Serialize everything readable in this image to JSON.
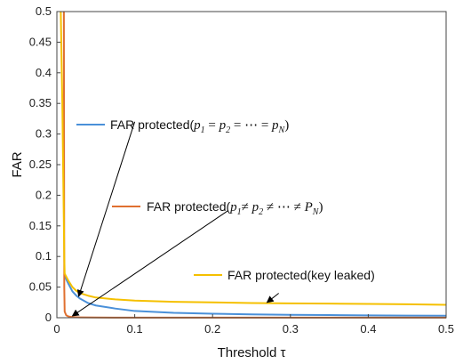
{
  "chart_data": {
    "type": "line",
    "xlabel": "Threshold τ",
    "ylabel": "FAR",
    "xlim": [
      0,
      0.5
    ],
    "ylim": [
      0,
      0.5
    ],
    "xticks": [
      "0",
      "0.1",
      "0.2",
      "0.3",
      "0.4",
      "0.5"
    ],
    "yticks": [
      "0",
      "0.05",
      "0.1",
      "0.15",
      "0.2",
      "0.25",
      "0.3",
      "0.35",
      "0.4",
      "0.45",
      "0.5"
    ],
    "grid": false,
    "series": [
      {
        "name": "FAR protected(p1 = p2 = ⋯ = pN)",
        "color": "#4a90d9",
        "points": [
          [
            0.01,
            0.068
          ],
          [
            0.015,
            0.055
          ],
          [
            0.02,
            0.043
          ],
          [
            0.025,
            0.036
          ],
          [
            0.03,
            0.031
          ],
          [
            0.04,
            0.024
          ],
          [
            0.05,
            0.02
          ],
          [
            0.075,
            0.015
          ],
          [
            0.1,
            0.011
          ],
          [
            0.15,
            0.008
          ],
          [
            0.2,
            0.0065
          ],
          [
            0.25,
            0.0055
          ],
          [
            0.3,
            0.0048
          ],
          [
            0.35,
            0.0043
          ],
          [
            0.4,
            0.0039
          ],
          [
            0.45,
            0.0035
          ],
          [
            0.5,
            0.0032
          ]
        ]
      },
      {
        "name": "FAR protected(p1≠ p2 ≠ ⋯ ≠ PN)",
        "color": "#e07030",
        "points": [
          [
            0.009,
            0.5
          ],
          [
            0.0095,
            0.05
          ],
          [
            0.01,
            0.01
          ],
          [
            0.012,
            0.004
          ],
          [
            0.015,
            0.002
          ],
          [
            0.02,
            0.001
          ],
          [
            0.03,
            0.0006
          ],
          [
            0.05,
            0.0003
          ],
          [
            0.1,
            0.0002
          ],
          [
            0.2,
            0.0001
          ],
          [
            0.3,
            0.0001
          ],
          [
            0.4,
            0.0001
          ],
          [
            0.5,
            0.0001
          ]
        ]
      },
      {
        "name": "FAR protected(key leaked)",
        "color": "#f5c000",
        "points": [
          [
            0.005,
            0.5
          ],
          [
            0.007,
            0.35
          ],
          [
            0.0085,
            0.2
          ],
          [
            0.0095,
            0.1
          ],
          [
            0.01,
            0.072
          ],
          [
            0.015,
            0.06
          ],
          [
            0.02,
            0.05
          ],
          [
            0.025,
            0.044
          ],
          [
            0.03,
            0.04
          ],
          [
            0.04,
            0.036
          ],
          [
            0.05,
            0.033
          ],
          [
            0.075,
            0.03
          ],
          [
            0.1,
            0.028
          ],
          [
            0.15,
            0.026
          ],
          [
            0.2,
            0.025
          ],
          [
            0.25,
            0.024
          ],
          [
            0.3,
            0.0235
          ],
          [
            0.35,
            0.023
          ],
          [
            0.4,
            0.0225
          ],
          [
            0.45,
            0.022
          ],
          [
            0.5,
            0.021
          ]
        ]
      }
    ],
    "annotations": [
      {
        "series": 0,
        "text_parts": [
          {
            "t": "FAR protected(",
            "k": "text"
          },
          {
            "t": "p",
            "k": "math"
          },
          {
            "t": "1",
            "k": "sub"
          },
          {
            "t": " = ",
            "k": "up"
          },
          {
            "t": "p",
            "k": "math"
          },
          {
            "t": "2",
            "k": "sub"
          },
          {
            "t": " = ⋯ = ",
            "k": "up"
          },
          {
            "t": "p",
            "k": "math"
          },
          {
            "t": "N",
            "k": "sub"
          },
          {
            "t": ")",
            "k": "up"
          }
        ],
        "arrow_from": [
          0.1,
          0.32
        ],
        "arrow_to": [
          0.028,
          0.035
        ]
      },
      {
        "series": 1,
        "text_parts": [
          {
            "t": "FAR protected(",
            "k": "text"
          },
          {
            "t": "p",
            "k": "math"
          },
          {
            "t": "1",
            "k": "sub"
          },
          {
            "t": "≠ ",
            "k": "up"
          },
          {
            "t": "p",
            "k": "math"
          },
          {
            "t": "2",
            "k": "sub"
          },
          {
            "t": " ≠ ⋯ ≠ ",
            "k": "up"
          },
          {
            "t": "P",
            "k": "math"
          },
          {
            "t": "N",
            "k": "sub"
          },
          {
            "t": ")",
            "k": "up"
          }
        ],
        "arrow_from": [
          0.22,
          0.175
        ],
        "arrow_to": [
          0.02,
          0.003
        ]
      },
      {
        "series": 2,
        "text_parts": [
          {
            "t": "FAR protected(key leaked)",
            "k": "text"
          }
        ],
        "arrow_from": [
          0.285,
          0.04
        ],
        "arrow_to": [
          0.27,
          0.025
        ]
      }
    ]
  }
}
